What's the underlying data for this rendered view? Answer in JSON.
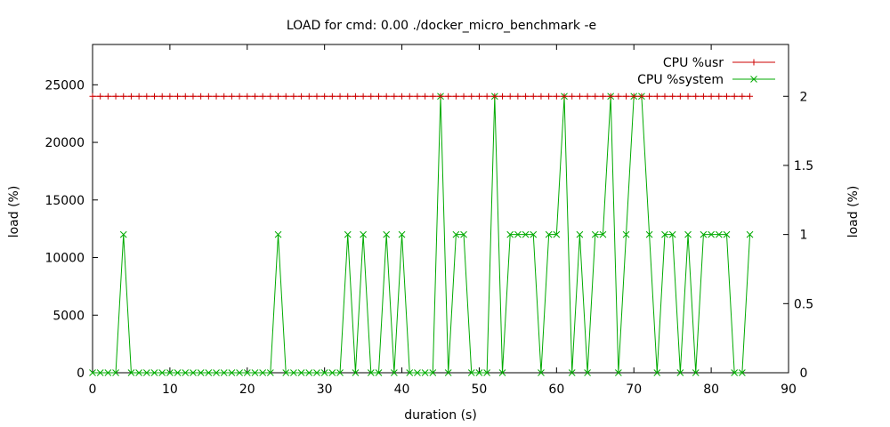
{
  "chart_data": {
    "type": "line",
    "title": "LOAD for cmd: 0.00 ./docker_micro_benchmark -e",
    "xlabel": "duration (s)",
    "ylabel": "load (%)",
    "y2label": "load (%)",
    "xlim": [
      0,
      90
    ],
    "ylim": [
      0,
      28500
    ],
    "y2lim": [
      0,
      2.375
    ],
    "xticks": [
      0,
      10,
      20,
      30,
      40,
      50,
      60,
      70,
      80,
      90
    ],
    "yticks": [
      0,
      5000,
      10000,
      15000,
      20000,
      25000
    ],
    "y2ticks": [
      0,
      0.5,
      1,
      1.5,
      2
    ],
    "grid": false,
    "legend_position": "top-right",
    "series": [
      {
        "name": "CPU %usr",
        "axis": "y2",
        "color": "#cc0000",
        "marker": "plus",
        "x": [
          0,
          1,
          2,
          3,
          4,
          5,
          6,
          7,
          8,
          9,
          10,
          11,
          12,
          13,
          14,
          15,
          16,
          17,
          18,
          19,
          20,
          21,
          22,
          23,
          24,
          25,
          26,
          27,
          28,
          29,
          30,
          31,
          32,
          33,
          34,
          35,
          36,
          37,
          38,
          39,
          40,
          41,
          42,
          43,
          44,
          45,
          46,
          47,
          48,
          49,
          50,
          51,
          52,
          53,
          54,
          55,
          56,
          57,
          58,
          59,
          60,
          61,
          62,
          63,
          64,
          65,
          66,
          67,
          68,
          69,
          70,
          71,
          72,
          73,
          74,
          75,
          76,
          77,
          78,
          79,
          80,
          81,
          82,
          83,
          84,
          85
        ],
        "values": [
          2,
          2,
          2,
          2,
          2,
          2,
          2,
          2,
          2,
          2,
          2,
          2,
          2,
          2,
          2,
          2,
          2,
          2,
          2,
          2,
          2,
          2,
          2,
          2,
          2,
          2,
          2,
          2,
          2,
          2,
          2,
          2,
          2,
          2,
          2,
          2,
          2,
          2,
          2,
          2,
          2,
          2,
          2,
          2,
          2,
          2,
          2,
          2,
          2,
          2,
          2,
          2,
          2,
          2,
          2,
          2,
          2,
          2,
          2,
          2,
          2,
          2,
          2,
          2,
          2,
          2,
          2,
          2,
          2,
          2,
          2,
          2,
          2,
          2,
          2,
          2,
          2,
          2,
          2,
          2,
          2,
          2,
          2,
          2,
          2,
          2
        ]
      },
      {
        "name": "CPU %system",
        "axis": "y2",
        "color": "#00aa00",
        "marker": "cross",
        "x": [
          0,
          1,
          2,
          3,
          4,
          5,
          6,
          7,
          8,
          9,
          10,
          11,
          12,
          13,
          14,
          15,
          16,
          17,
          18,
          19,
          20,
          21,
          22,
          23,
          24,
          25,
          26,
          27,
          28,
          29,
          30,
          31,
          32,
          33,
          34,
          35,
          36,
          37,
          38,
          39,
          40,
          41,
          42,
          43,
          44,
          45,
          46,
          47,
          48,
          49,
          50,
          51,
          52,
          53,
          54,
          55,
          56,
          57,
          58,
          59,
          60,
          61,
          62,
          63,
          64,
          65,
          66,
          67,
          68,
          69,
          70,
          71,
          72,
          73,
          74,
          75,
          76,
          77,
          78,
          79,
          80,
          81,
          82,
          83,
          84,
          85
        ],
        "values": [
          0,
          0,
          0,
          0,
          1,
          0,
          0,
          0,
          0,
          0,
          0,
          0,
          0,
          0,
          0,
          0,
          0,
          0,
          0,
          0,
          0,
          0,
          0,
          0,
          1,
          0,
          0,
          0,
          0,
          0,
          0,
          0,
          0,
          1,
          0,
          1,
          0,
          0,
          1,
          0,
          1,
          0,
          0,
          0,
          0,
          2,
          0,
          1,
          1,
          0,
          0,
          0,
          2,
          0,
          1,
          1,
          1,
          1,
          0,
          1,
          1,
          2,
          0,
          1,
          0,
          1,
          1,
          2,
          0,
          1,
          2,
          2,
          1,
          0,
          1,
          1,
          0,
          1,
          0,
          1,
          1,
          1,
          1,
          0,
          0,
          1
        ]
      }
    ]
  }
}
